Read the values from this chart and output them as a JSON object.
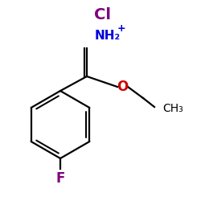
{
  "background_color": "#ffffff",
  "figsize": [
    2.5,
    2.5
  ],
  "dpi": 100,
  "cl_label": "Cl",
  "cl_color": "#800080",
  "cl_fontsize": 14,
  "cl_fontweight": "bold",
  "nh2_label": "NH₂",
  "nh2_color": "#0000dd",
  "nh2_fontsize": 11,
  "nh2_fontweight": "bold",
  "plus_fontsize": 9,
  "o_label": "O",
  "o_color": "#cc0000",
  "o_fontsize": 12,
  "o_fontweight": "bold",
  "ch3_label": "CH₃",
  "ch3_fontsize": 10,
  "f_label": "F",
  "f_color": "#800080",
  "f_fontsize": 12,
  "f_fontweight": "bold",
  "bond_color": "#000000",
  "bond_lw": 1.6
}
